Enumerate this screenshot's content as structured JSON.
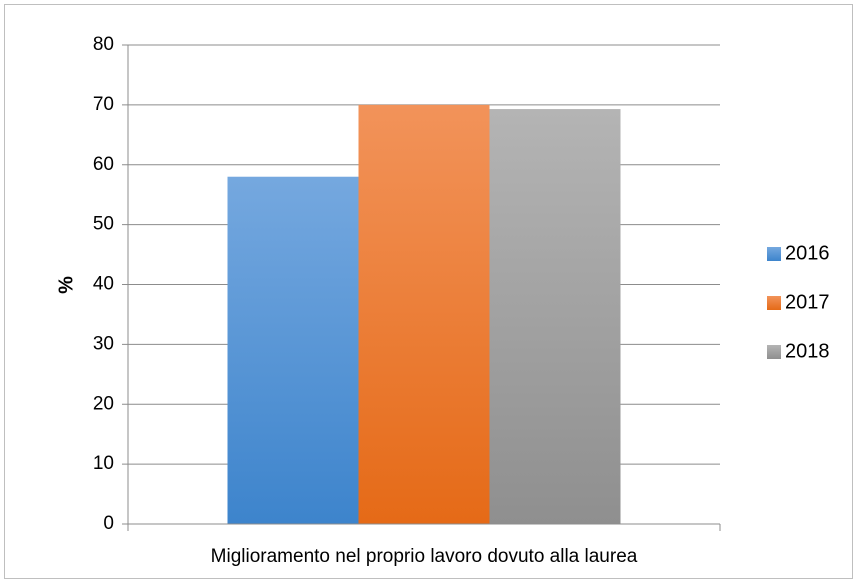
{
  "chart_data": {
    "type": "bar",
    "categories": [
      "Miglioramento nel proprio lavoro dovuto alla laurea"
    ],
    "series": [
      {
        "name": "2016",
        "values": [
          58
        ],
        "color": "#4a8fd6"
      },
      {
        "name": "2017",
        "values": [
          70
        ],
        "color": "#ef7a2a"
      },
      {
        "name": "2018",
        "values": [
          69.3
        ],
        "color": "#a3a3a3"
      }
    ],
    "ylabel": "%",
    "xlabel": "",
    "ylim": [
      0,
      80
    ],
    "yticks": [
      "0",
      "10",
      "20",
      "30",
      "40",
      "50",
      "60",
      "70",
      "80"
    ],
    "grid": true,
    "legend_position": "right"
  }
}
